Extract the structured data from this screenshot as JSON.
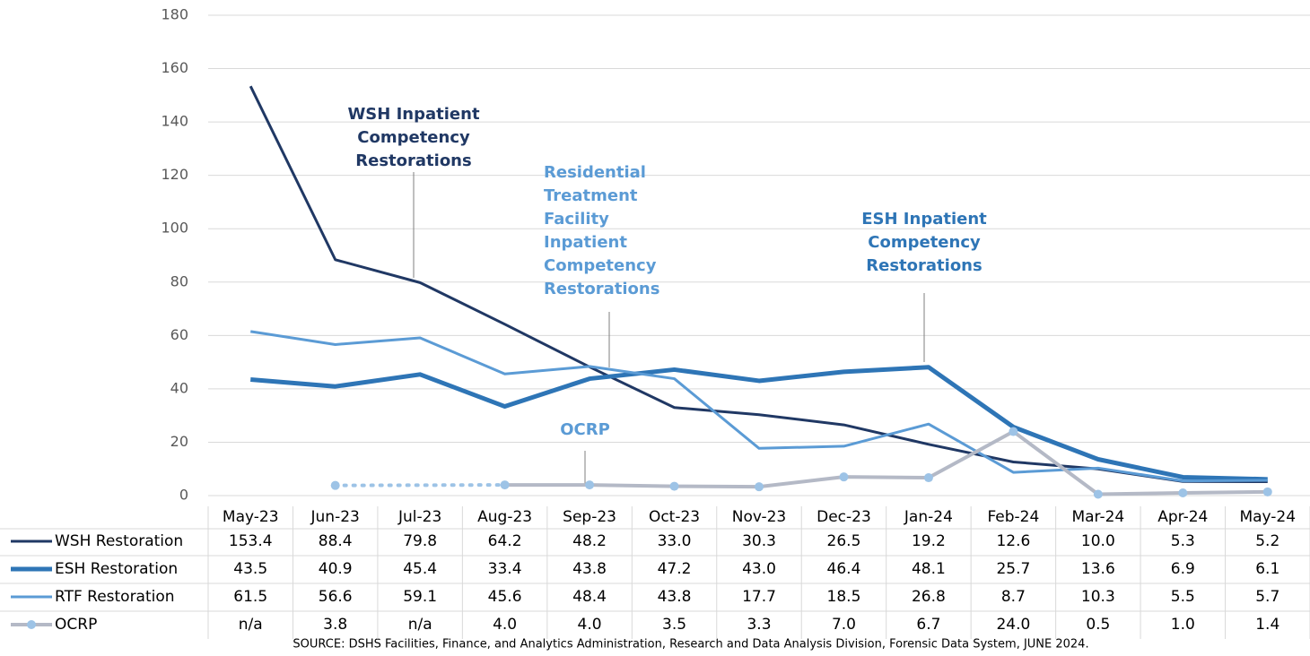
{
  "chart_data": {
    "type": "line",
    "categories": [
      "May-23",
      "Jun-23",
      "Jul-23",
      "Aug-23",
      "Sep-23",
      "Oct-23",
      "Nov-23",
      "Dec-23",
      "Jan-24",
      "Feb-24",
      "Mar-24",
      "Apr-24",
      "May-24"
    ],
    "ylim": [
      0,
      180
    ],
    "yticks": [
      0,
      20,
      40,
      60,
      80,
      100,
      120,
      140,
      160,
      180
    ],
    "grid": true,
    "series": [
      {
        "name": "WSH Restoration",
        "color": "#203864",
        "values": [
          153.4,
          88.4,
          79.8,
          64.2,
          48.2,
          33.0,
          30.3,
          26.5,
          19.2,
          12.6,
          10.0,
          5.3,
          5.2
        ],
        "value_labels": [
          "153.4",
          "88.4",
          "79.8",
          "64.2",
          "48.2",
          "33.0",
          "30.3",
          "26.5",
          "19.2",
          "12.6",
          "10.0",
          "5.3",
          "5.2"
        ]
      },
      {
        "name": "ESH Restoration",
        "color": "#2e75b6",
        "values": [
          43.5,
          40.9,
          45.4,
          33.4,
          43.8,
          47.2,
          43.0,
          46.4,
          48.1,
          25.7,
          13.6,
          6.9,
          6.1
        ],
        "value_labels": [
          "43.5",
          "40.9",
          "45.4",
          "33.4",
          "43.8",
          "47.2",
          "43.0",
          "46.4",
          "48.1",
          "25.7",
          "13.6",
          "6.9",
          "6.1"
        ]
      },
      {
        "name": "RTF Restoration",
        "color": "#5b9bd5",
        "values": [
          61.5,
          56.6,
          59.1,
          45.6,
          48.4,
          43.8,
          17.7,
          18.5,
          26.8,
          8.7,
          10.3,
          5.5,
          5.7
        ],
        "value_labels": [
          "61.5",
          "56.6",
          "59.1",
          "45.6",
          "48.4",
          "43.8",
          "17.7",
          "18.5",
          "26.8",
          "8.7",
          "10.3",
          "5.5",
          "5.7"
        ]
      },
      {
        "name": "OCRP",
        "color": "#b4b9c6",
        "marker_color": "#9dc3e6",
        "values": [
          null,
          3.8,
          null,
          4.0,
          4.0,
          3.5,
          3.3,
          7.0,
          6.7,
          24.0,
          0.5,
          1.0,
          1.4
        ],
        "value_labels": [
          "n/a",
          "3.8",
          "n/a",
          "4.0",
          "4.0",
          "3.5",
          "3.3",
          "7.0",
          "6.7",
          "24.0",
          "0.5",
          "1.0",
          "1.4"
        ]
      }
    ],
    "annotations": [
      {
        "lines": [
          "WSH Inpatient",
          "Competency",
          "Restorations"
        ],
        "color": "#203864"
      },
      {
        "lines": [
          "Residential",
          "Treatment",
          "Facility",
          "Inpatient",
          "Competency",
          "Restorations"
        ],
        "color": "#5b9bd5"
      },
      {
        "lines": [
          "ESH Inpatient",
          "Competency",
          "Restorations"
        ],
        "color": "#2e75b6"
      },
      {
        "lines": [
          "OCRP"
        ],
        "color": "#5b9bd5"
      }
    ],
    "source": "SOURCE: DSHS Facilities, Finance, and Analytics Administration, Research and Data Analysis Division, Forensic Data System, JUNE 2024."
  }
}
